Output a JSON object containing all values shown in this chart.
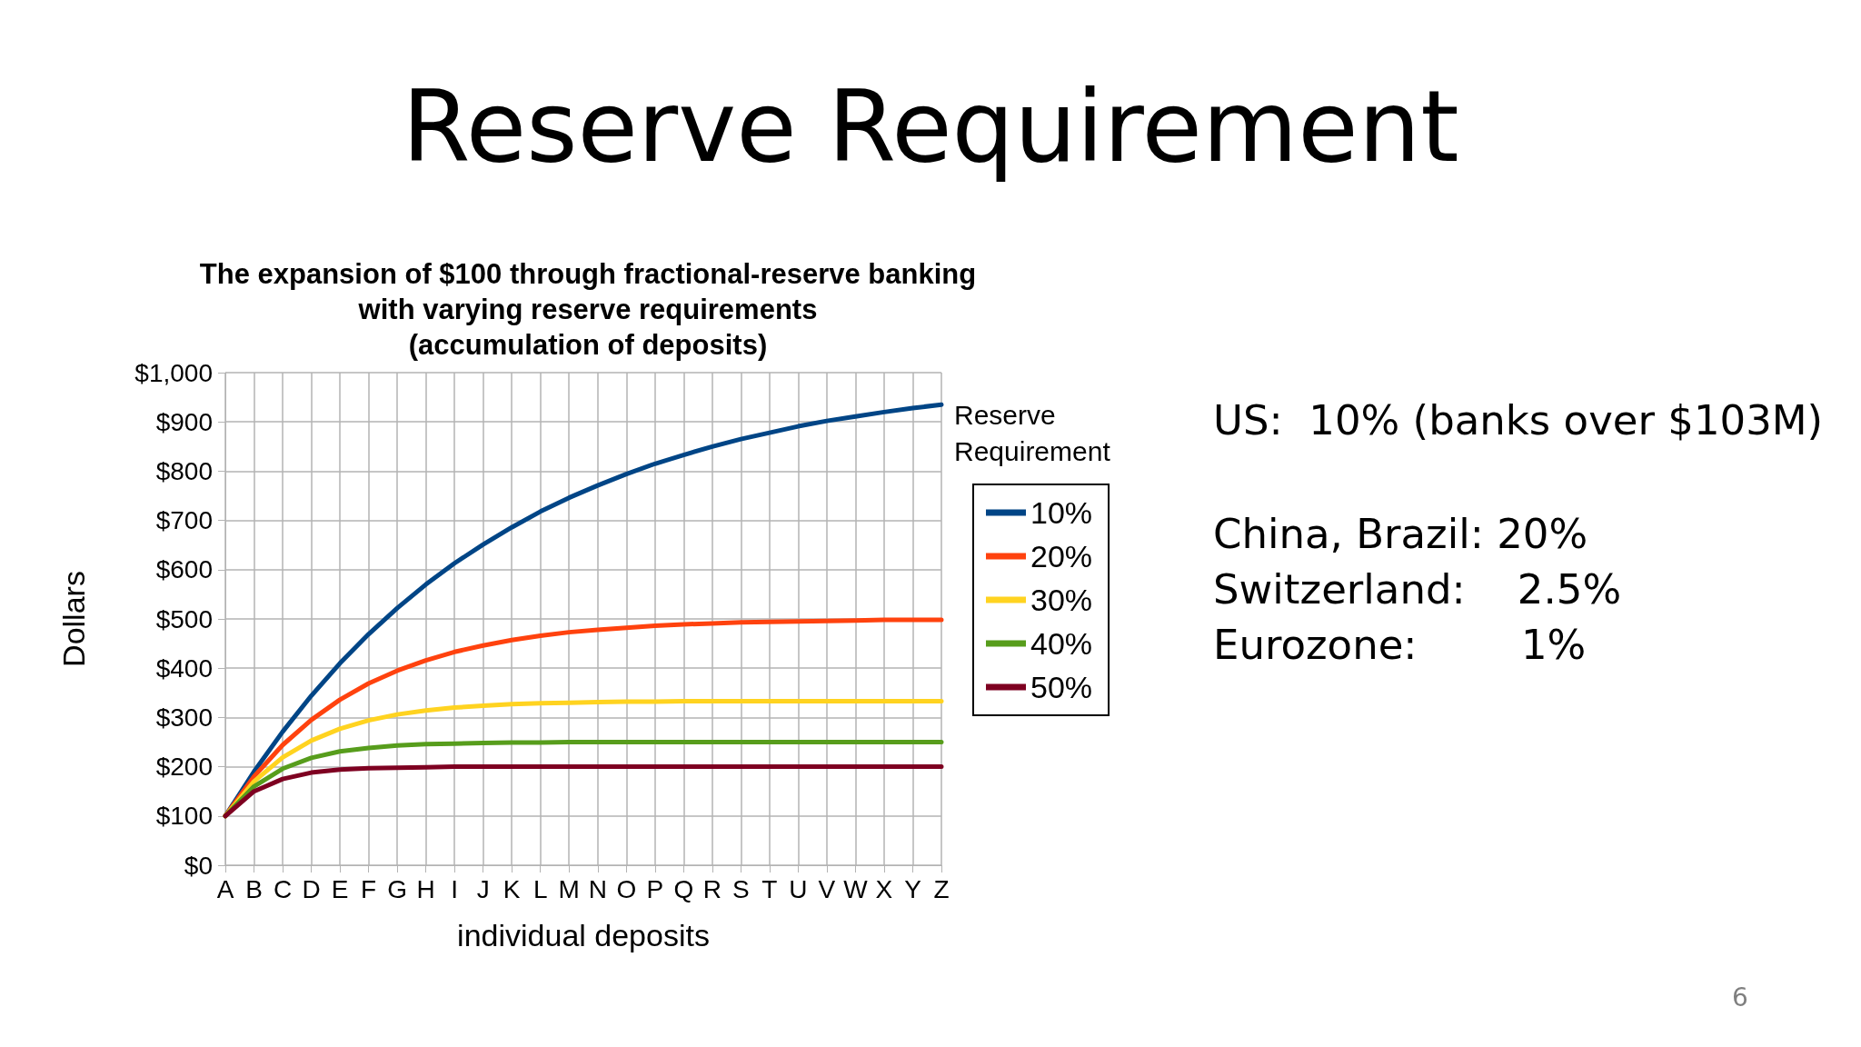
{
  "chart_data": {
    "type": "line",
    "title": "Reserve Requirement",
    "subtitle": "The expansion of $100 through fractional-reserve banking\nwith varying reserve requirements\n(accumulation of deposits)",
    "xlabel": "individual deposits",
    "ylabel": "Dollars",
    "legend_title": "Reserve Requirement",
    "categories": [
      "A",
      "B",
      "C",
      "D",
      "E",
      "F",
      "G",
      "H",
      "I",
      "J",
      "K",
      "L",
      "M",
      "N",
      "O",
      "P",
      "Q",
      "R",
      "S",
      "T",
      "U",
      "V",
      "W",
      "X",
      "Y",
      "Z"
    ],
    "series": [
      {
        "name": "10%",
        "color": "#004586",
        "values": [
          100,
          190,
          271,
          344,
          410,
          469,
          522,
          570,
          613,
          651,
          686,
          718,
          746,
          771,
          794,
          815,
          833,
          850,
          865,
          878,
          891,
          902,
          911,
          920,
          928,
          935
        ]
      },
      {
        "name": "20%",
        "color": "#ff420e",
        "values": [
          100,
          180,
          244,
          295,
          336,
          369,
          395,
          416,
          433,
          446,
          457,
          466,
          473,
          478,
          482,
          486,
          489,
          491,
          493,
          494,
          495,
          496,
          497,
          498,
          498,
          498
        ]
      },
      {
        "name": "30%",
        "color": "#ffd320",
        "values": [
          100,
          170,
          219,
          253,
          277,
          294,
          306,
          314,
          320,
          324,
          327,
          329,
          330,
          331,
          332,
          332,
          333,
          333,
          333,
          333,
          333,
          333,
          333,
          333,
          333,
          333
        ]
      },
      {
        "name": "40%",
        "color": "#579d1c",
        "values": [
          100,
          160,
          196,
          218,
          231,
          238,
          243,
          246,
          247,
          248,
          249,
          249,
          250,
          250,
          250,
          250,
          250,
          250,
          250,
          250,
          250,
          250,
          250,
          250,
          250,
          250
        ]
      },
      {
        "name": "50%",
        "color": "#7e0021",
        "values": [
          100,
          150,
          175,
          188,
          194,
          197,
          198,
          199,
          200,
          200,
          200,
          200,
          200,
          200,
          200,
          200,
          200,
          200,
          200,
          200,
          200,
          200,
          200,
          200,
          200,
          200
        ]
      }
    ],
    "ylim": [
      0,
      1000
    ],
    "yticks": [
      {
        "value": 0,
        "label": "$0"
      },
      {
        "value": 100,
        "label": "$100"
      },
      {
        "value": 200,
        "label": "$200"
      },
      {
        "value": 300,
        "label": "$300"
      },
      {
        "value": 400,
        "label": "$400"
      },
      {
        "value": 500,
        "label": "$500"
      },
      {
        "value": 600,
        "label": "$600"
      },
      {
        "value": 700,
        "label": "$700"
      },
      {
        "value": 800,
        "label": "$800"
      },
      {
        "value": 900,
        "label": "$900"
      },
      {
        "value": 1000,
        "label": "$1,000"
      }
    ],
    "grid": true,
    "legend": "right",
    "marker": "none",
    "line_style": "solid",
    "annotations": [
      "US:  10% (banks over $103M)",
      "China, Brazil: 20%",
      "Switzerland:    2.5%",
      "Eurozone:        1%",
      "6"
    ]
  }
}
